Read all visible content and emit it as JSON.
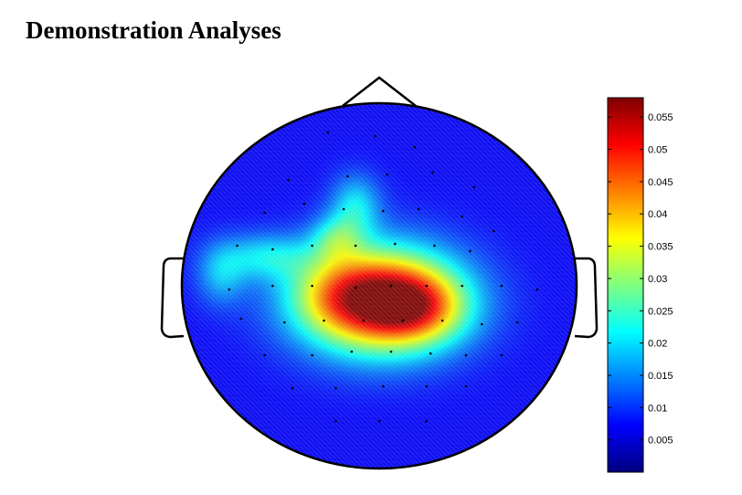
{
  "title": "Demonstration Analyses",
  "chart_data": {
    "type": "heatmap",
    "subtype": "scalp-topography",
    "title": "Demonstration Analyses",
    "colormap": "jet",
    "color_range": [
      0,
      0.058
    ],
    "colorbar": {
      "position": "right",
      "ticks": [
        0.005,
        0.01,
        0.015,
        0.02,
        0.025,
        0.03,
        0.035,
        0.04,
        0.045,
        0.05,
        0.055
      ],
      "tick_labels": [
        "0.005",
        "0.01",
        "0.015",
        "0.02",
        "0.025",
        "0.03",
        "0.035",
        "0.04",
        "0.045",
        "0.05",
        "0.055"
      ]
    },
    "background_value": 0.007,
    "sources": [
      {
        "x": 0.0,
        "y": -0.08,
        "amplitude": 0.049,
        "sx": 0.28,
        "sy": 0.2
      },
      {
        "x": 0.2,
        "y": -0.12,
        "amplitude": 0.016,
        "sx": 0.17,
        "sy": 0.13
      },
      {
        "x": -0.22,
        "y": -0.04,
        "amplitude": 0.008,
        "sx": 0.16,
        "sy": 0.14
      },
      {
        "x": -0.22,
        "y": 0.26,
        "amplitude": 0.012,
        "sx": 0.09,
        "sy": 0.09
      },
      {
        "x": -0.12,
        "y": 0.44,
        "amplitude": 0.013,
        "sx": 0.09,
        "sy": 0.12
      },
      {
        "x": -0.58,
        "y": 0.16,
        "amplitude": 0.012,
        "sx": 0.16,
        "sy": 0.09
      },
      {
        "x": -0.8,
        "y": 0.06,
        "amplitude": 0.01,
        "sx": 0.09,
        "sy": 0.12
      }
    ],
    "electrodes": [
      [
        -0.26,
        0.84
      ],
      [
        -0.02,
        0.82
      ],
      [
        0.18,
        0.76
      ],
      [
        -0.46,
        0.58
      ],
      [
        -0.16,
        0.6
      ],
      [
        0.04,
        0.61
      ],
      [
        0.27,
        0.62
      ],
      [
        0.48,
        0.54
      ],
      [
        -0.58,
        0.4
      ],
      [
        -0.38,
        0.45
      ],
      [
        -0.18,
        0.42
      ],
      [
        0.02,
        0.41
      ],
      [
        0.2,
        0.42
      ],
      [
        0.42,
        0.38
      ],
      [
        0.58,
        0.3
      ],
      [
        -0.72,
        0.22
      ],
      [
        -0.54,
        0.2
      ],
      [
        -0.34,
        0.22
      ],
      [
        -0.12,
        0.22
      ],
      [
        0.08,
        0.23
      ],
      [
        0.28,
        0.22
      ],
      [
        0.46,
        0.19
      ],
      [
        -0.76,
        -0.02
      ],
      [
        -0.54,
        0.0
      ],
      [
        -0.34,
        0.0
      ],
      [
        -0.12,
        -0.01
      ],
      [
        0.06,
        0.0
      ],
      [
        0.24,
        0.0
      ],
      [
        0.42,
        0.0
      ],
      [
        0.62,
        0.0
      ],
      [
        0.8,
        -0.02
      ],
      [
        -0.7,
        -0.18
      ],
      [
        -0.48,
        -0.2
      ],
      [
        -0.28,
        -0.19
      ],
      [
        -0.08,
        -0.19
      ],
      [
        0.12,
        -0.19
      ],
      [
        0.32,
        -0.19
      ],
      [
        0.52,
        -0.21
      ],
      [
        0.7,
        -0.2
      ],
      [
        -0.58,
        -0.38
      ],
      [
        -0.34,
        -0.38
      ],
      [
        -0.14,
        -0.36
      ],
      [
        0.06,
        -0.36
      ],
      [
        0.26,
        -0.37
      ],
      [
        0.44,
        -0.38
      ],
      [
        0.62,
        -0.38
      ],
      [
        -0.44,
        -0.56
      ],
      [
        -0.22,
        -0.56
      ],
      [
        0.02,
        -0.55
      ],
      [
        0.24,
        -0.55
      ],
      [
        0.44,
        -0.55
      ],
      [
        -0.22,
        -0.74
      ],
      [
        0.0,
        -0.74
      ],
      [
        0.24,
        -0.74
      ]
    ]
  }
}
